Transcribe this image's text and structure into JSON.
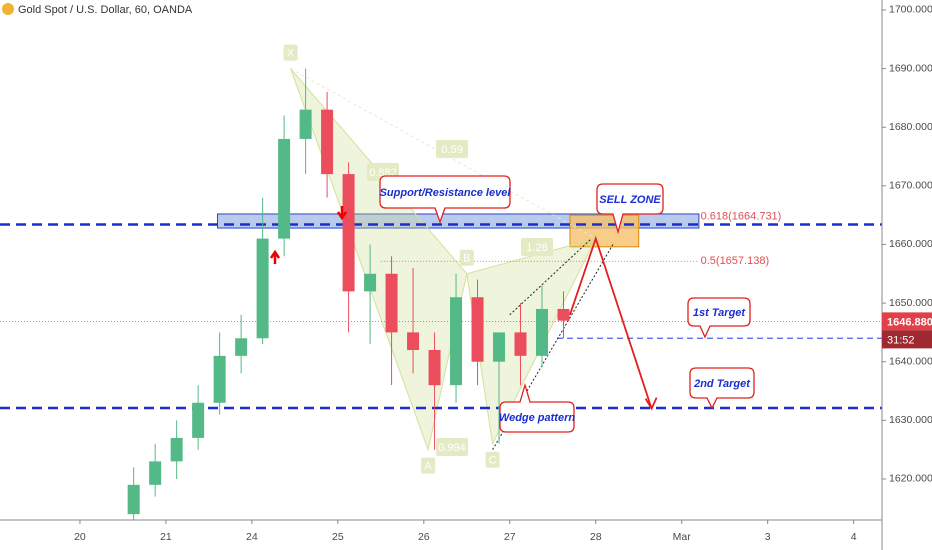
{
  "chart_data": {
    "type": "candlestick",
    "title": "Gold Spot / U.S. Dollar, 60, OANDA",
    "x": [
      0.625,
      0.875,
      1.125,
      1.375,
      1.625,
      1.875,
      2.125,
      2.375,
      2.625,
      2.875,
      3.125,
      3.375,
      3.625,
      3.875,
      4.125,
      4.375,
      4.625,
      4.875,
      5.125,
      5.375,
      5.625
    ],
    "open": [
      1614,
      1619,
      1623,
      1627,
      1633,
      1641,
      1644,
      1661,
      1678,
      1683,
      1672,
      1652,
      1655,
      1645,
      1642,
      1636,
      1651,
      1640,
      1645,
      1641,
      1649
    ],
    "high": [
      1622,
      1626,
      1630,
      1636,
      1645,
      1648,
      1668,
      1682,
      1690,
      1686,
      1674,
      1660,
      1658,
      1656,
      1645,
      1655,
      1654,
      1645,
      1650,
      1653,
      1652
    ],
    "low": [
      1613,
      1617,
      1620,
      1625,
      1631,
      1638,
      1643,
      1658,
      1672,
      1668,
      1645,
      1643,
      1636,
      1638,
      1625,
      1633,
      1636,
      1626,
      1636,
      1639,
      1644
    ],
    "close": [
      1619,
      1623,
      1627,
      1633,
      1641,
      1644,
      1661,
      1678,
      1683,
      1672,
      1652,
      1655,
      1645,
      1642,
      1636,
      1651,
      1640,
      1645,
      1641,
      1649,
      1647
    ],
    "up_color": "#53b987",
    "down_color": "#eb4d5c",
    "xlim": [
      -0.93,
      9.33
    ],
    "xticks": [
      {
        "value": 0,
        "label": "20"
      },
      {
        "value": 1,
        "label": "21"
      },
      {
        "value": 2,
        "label": "24"
      },
      {
        "value": 3,
        "label": "25"
      },
      {
        "value": 4,
        "label": "26"
      },
      {
        "value": 5,
        "label": "27"
      },
      {
        "value": 6,
        "label": "28"
      },
      {
        "value": 7,
        "label": "Mar"
      },
      {
        "value": 8,
        "label": "3"
      },
      {
        "value": 9,
        "label": "4"
      }
    ],
    "ylim": [
      1613,
      1701.7
    ],
    "yticks": [
      {
        "value": 1620,
        "label": "1620.000"
      },
      {
        "value": 1630,
        "label": "1630.000"
      },
      {
        "value": 1640,
        "label": "1640.000"
      },
      {
        "value": 1650,
        "label": "1650.000"
      },
      {
        "value": 1660,
        "label": "1660.000"
      },
      {
        "value": 1670,
        "label": "1670.000"
      },
      {
        "value": 1680,
        "label": "1680.000"
      },
      {
        "value": 1690,
        "label": "1690.000"
      },
      {
        "value": 1700,
        "label": "1700.000"
      }
    ],
    "current_price": {
      "value": 1646.88,
      "label": "1646.880"
    },
    "countdown": "31:52",
    "levels": [
      {
        "value": 1663.4,
        "color": "#1a2ecf"
      },
      {
        "value": 1632.1,
        "color": "#1a2ecf"
      },
      {
        "value": 1644.0,
        "color": "#4a63e8"
      }
    ],
    "fib": [
      {
        "value": 1664.731,
        "label": "0.618(1664.731)"
      },
      {
        "value": 1657.138,
        "label": "0.5(1657.138)"
      }
    ],
    "zones": [
      {
        "x": [
          1.6,
          7.2
        ],
        "y": [
          1662.8,
          1665.2
        ],
        "color": "#a9bde8"
      },
      {
        "x": [
          5.7,
          6.5
        ],
        "y": [
          1659.6,
          1665
        ],
        "color": "#f5c06b"
      }
    ],
    "pattern": {
      "points": [
        {
          "label": "X",
          "x": 2.45,
          "y": 1690
        },
        {
          "label": "A",
          "x": 4.05,
          "y": 1625
        },
        {
          "label": "B",
          "x": 4.5,
          "y": 1655
        },
        {
          "label": "C",
          "x": 4.8,
          "y": 1626
        },
        {
          "x": 6.0,
          "y": 1661
        }
      ],
      "ratios": [
        0.59,
        0.882,
        1.26,
        0.994
      ]
    },
    "wedge": [
      {
        "x": [
          5.0,
          5.95
        ],
        "y": [
          1648,
          1661
        ]
      },
      {
        "x": [
          4.8,
          6.2
        ],
        "y": [
          1625,
          1660
        ]
      }
    ],
    "projection": {
      "x": [
        5.7,
        6.0,
        6.65
      ],
      "y": [
        1648,
        1661,
        1632
      ]
    },
    "callouts": [
      "Support/Resistance level",
      "SELL ZONE",
      "1st Target",
      "2nd Target",
      "Wedge pattern"
    ]
  }
}
